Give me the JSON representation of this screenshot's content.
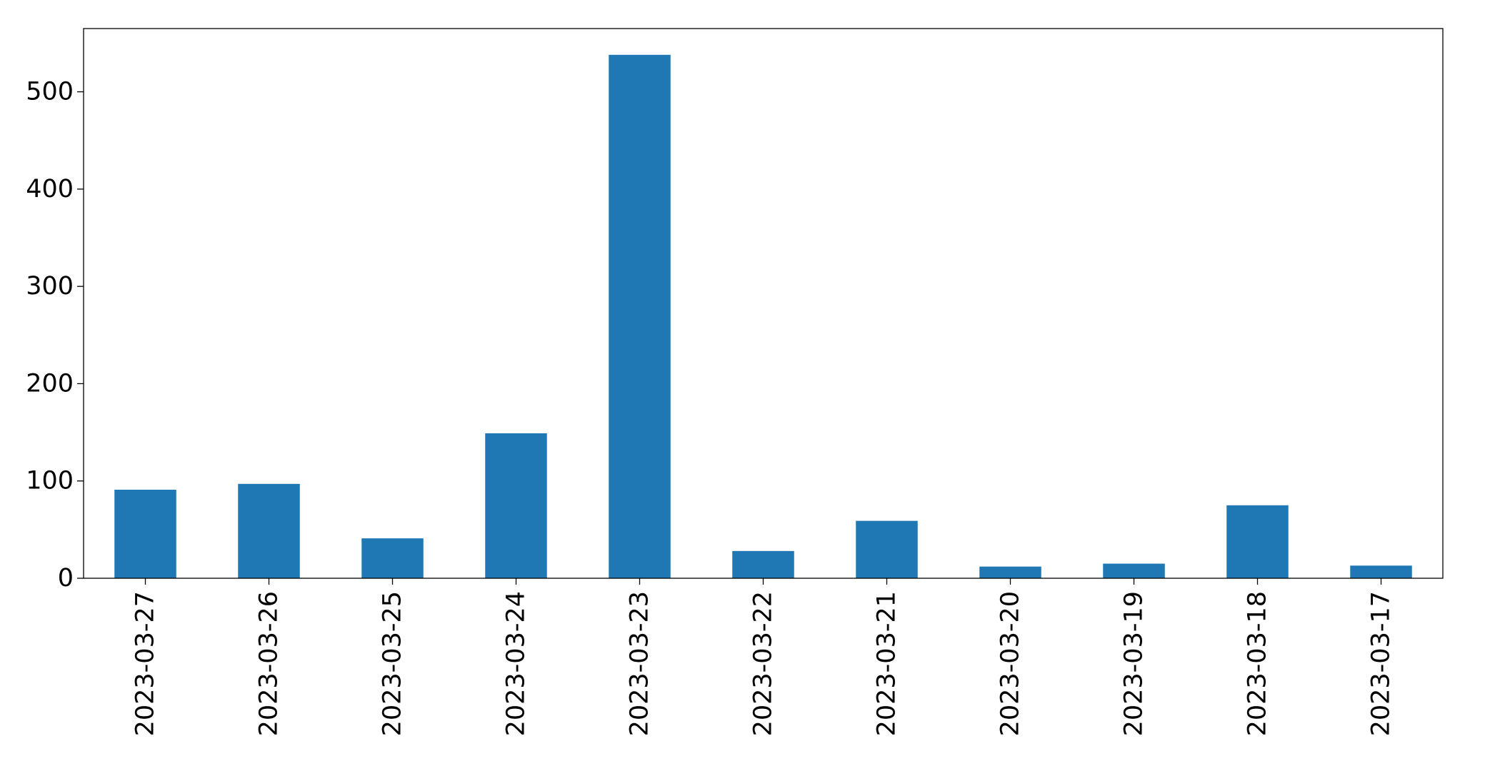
{
  "chart_data": {
    "type": "bar",
    "title": "",
    "xlabel": "",
    "ylabel": "",
    "categories": [
      "2023-03-27",
      "2023-03-26",
      "2023-03-25",
      "2023-03-24",
      "2023-03-23",
      "2023-03-22",
      "2023-03-21",
      "2023-03-20",
      "2023-03-19",
      "2023-03-18",
      "2023-03-17"
    ],
    "values": [
      91,
      97,
      41,
      149,
      538,
      28,
      59,
      12,
      15,
      75,
      13
    ],
    "ylim": [
      0,
      565
    ],
    "yticks": [
      0,
      100,
      200,
      300,
      400,
      500
    ],
    "grid": false,
    "legend": "none",
    "bar_color": "#1f77b4"
  }
}
